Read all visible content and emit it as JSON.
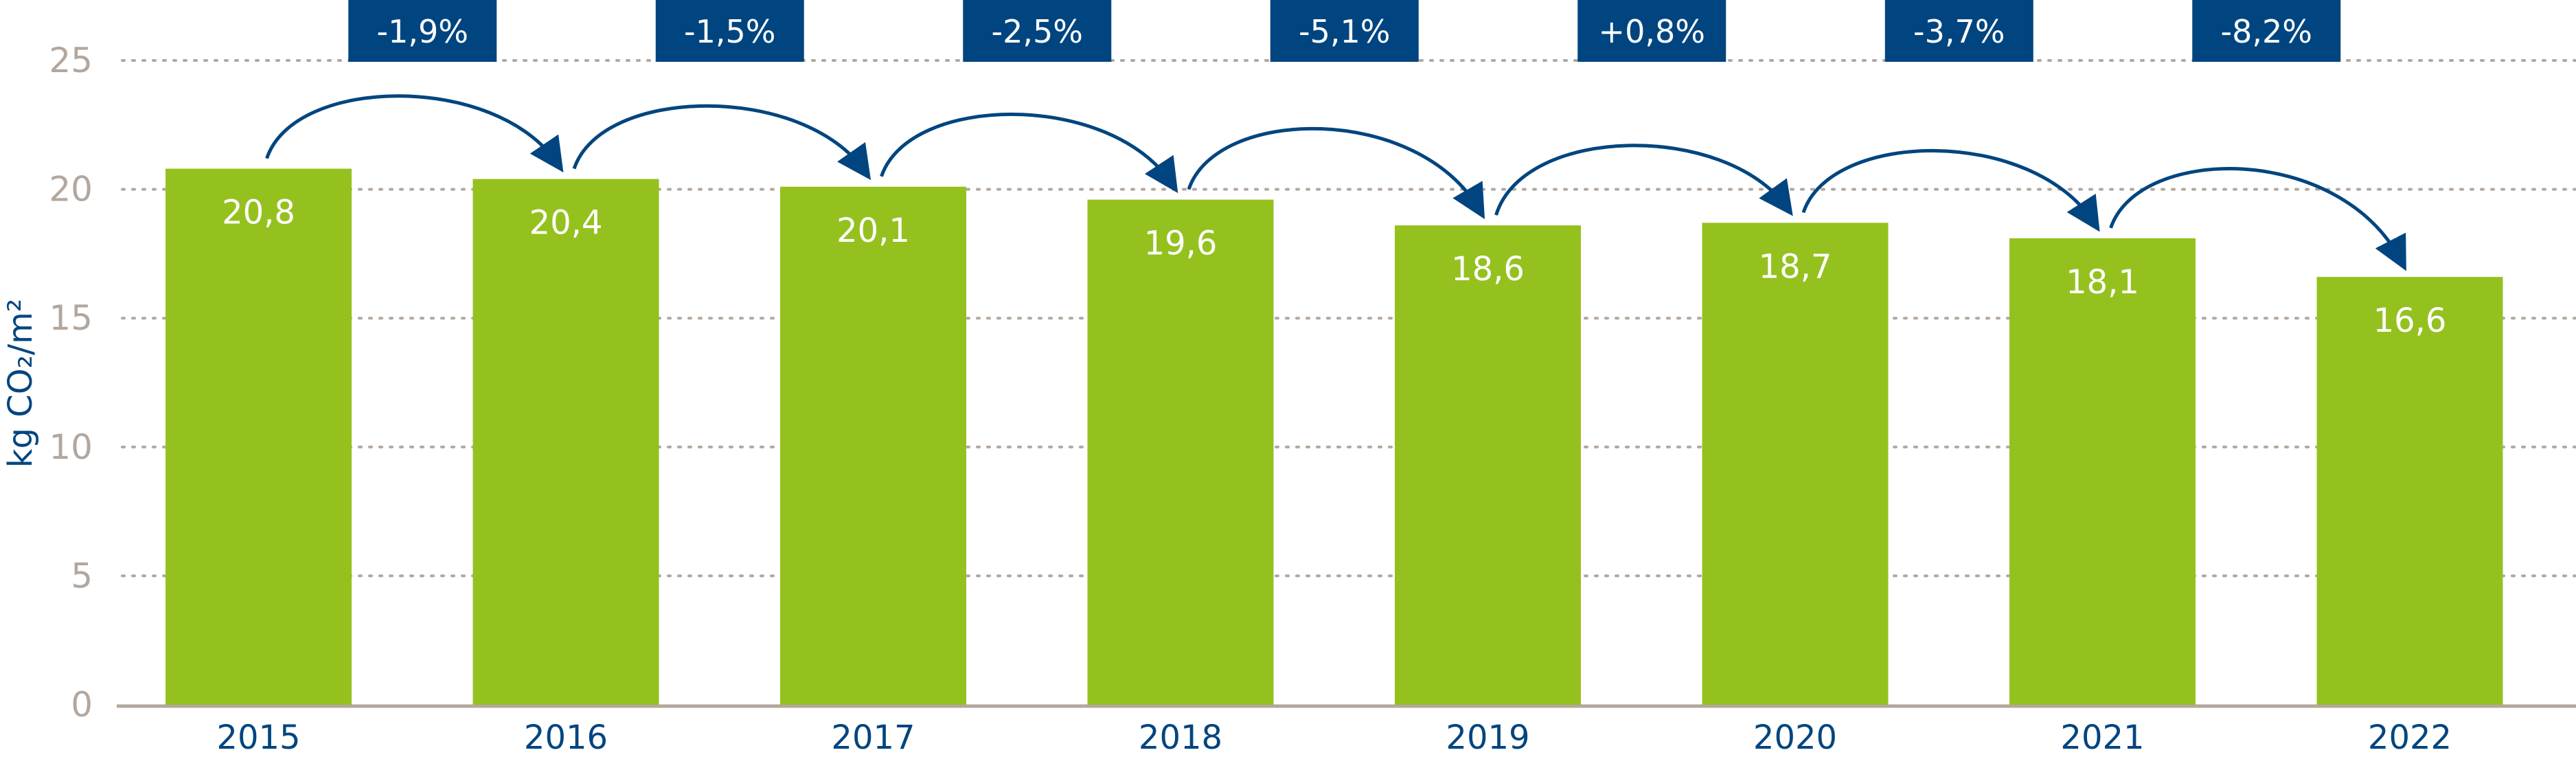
{
  "chart_data": {
    "type": "bar",
    "title": "",
    "xlabel": "",
    "ylabel": "kg CO₂/m²",
    "ylim": [
      0,
      25
    ],
    "yticks": [
      0,
      5,
      10,
      15,
      20,
      25
    ],
    "grid": "horizontal-dotted",
    "categories": [
      "2015",
      "2016",
      "2017",
      "2018",
      "2019",
      "2020",
      "2021",
      "2022"
    ],
    "values": [
      20.8,
      20.4,
      20.1,
      19.6,
      18.6,
      18.7,
      18.1,
      16.6
    ],
    "value_labels": [
      "20,8",
      "20,4",
      "20,1",
      "19,6",
      "18,6",
      "18,7",
      "18,1",
      "16,6"
    ],
    "changes": [
      "-1,9%",
      "-1,5%",
      "-2,5%",
      "-5,1%",
      "+0,8%",
      "-3,7%",
      "-8,2%"
    ],
    "colors": {
      "bar": "#95c11f",
      "accent": "#00457f",
      "axis": "#b3a79d"
    }
  }
}
